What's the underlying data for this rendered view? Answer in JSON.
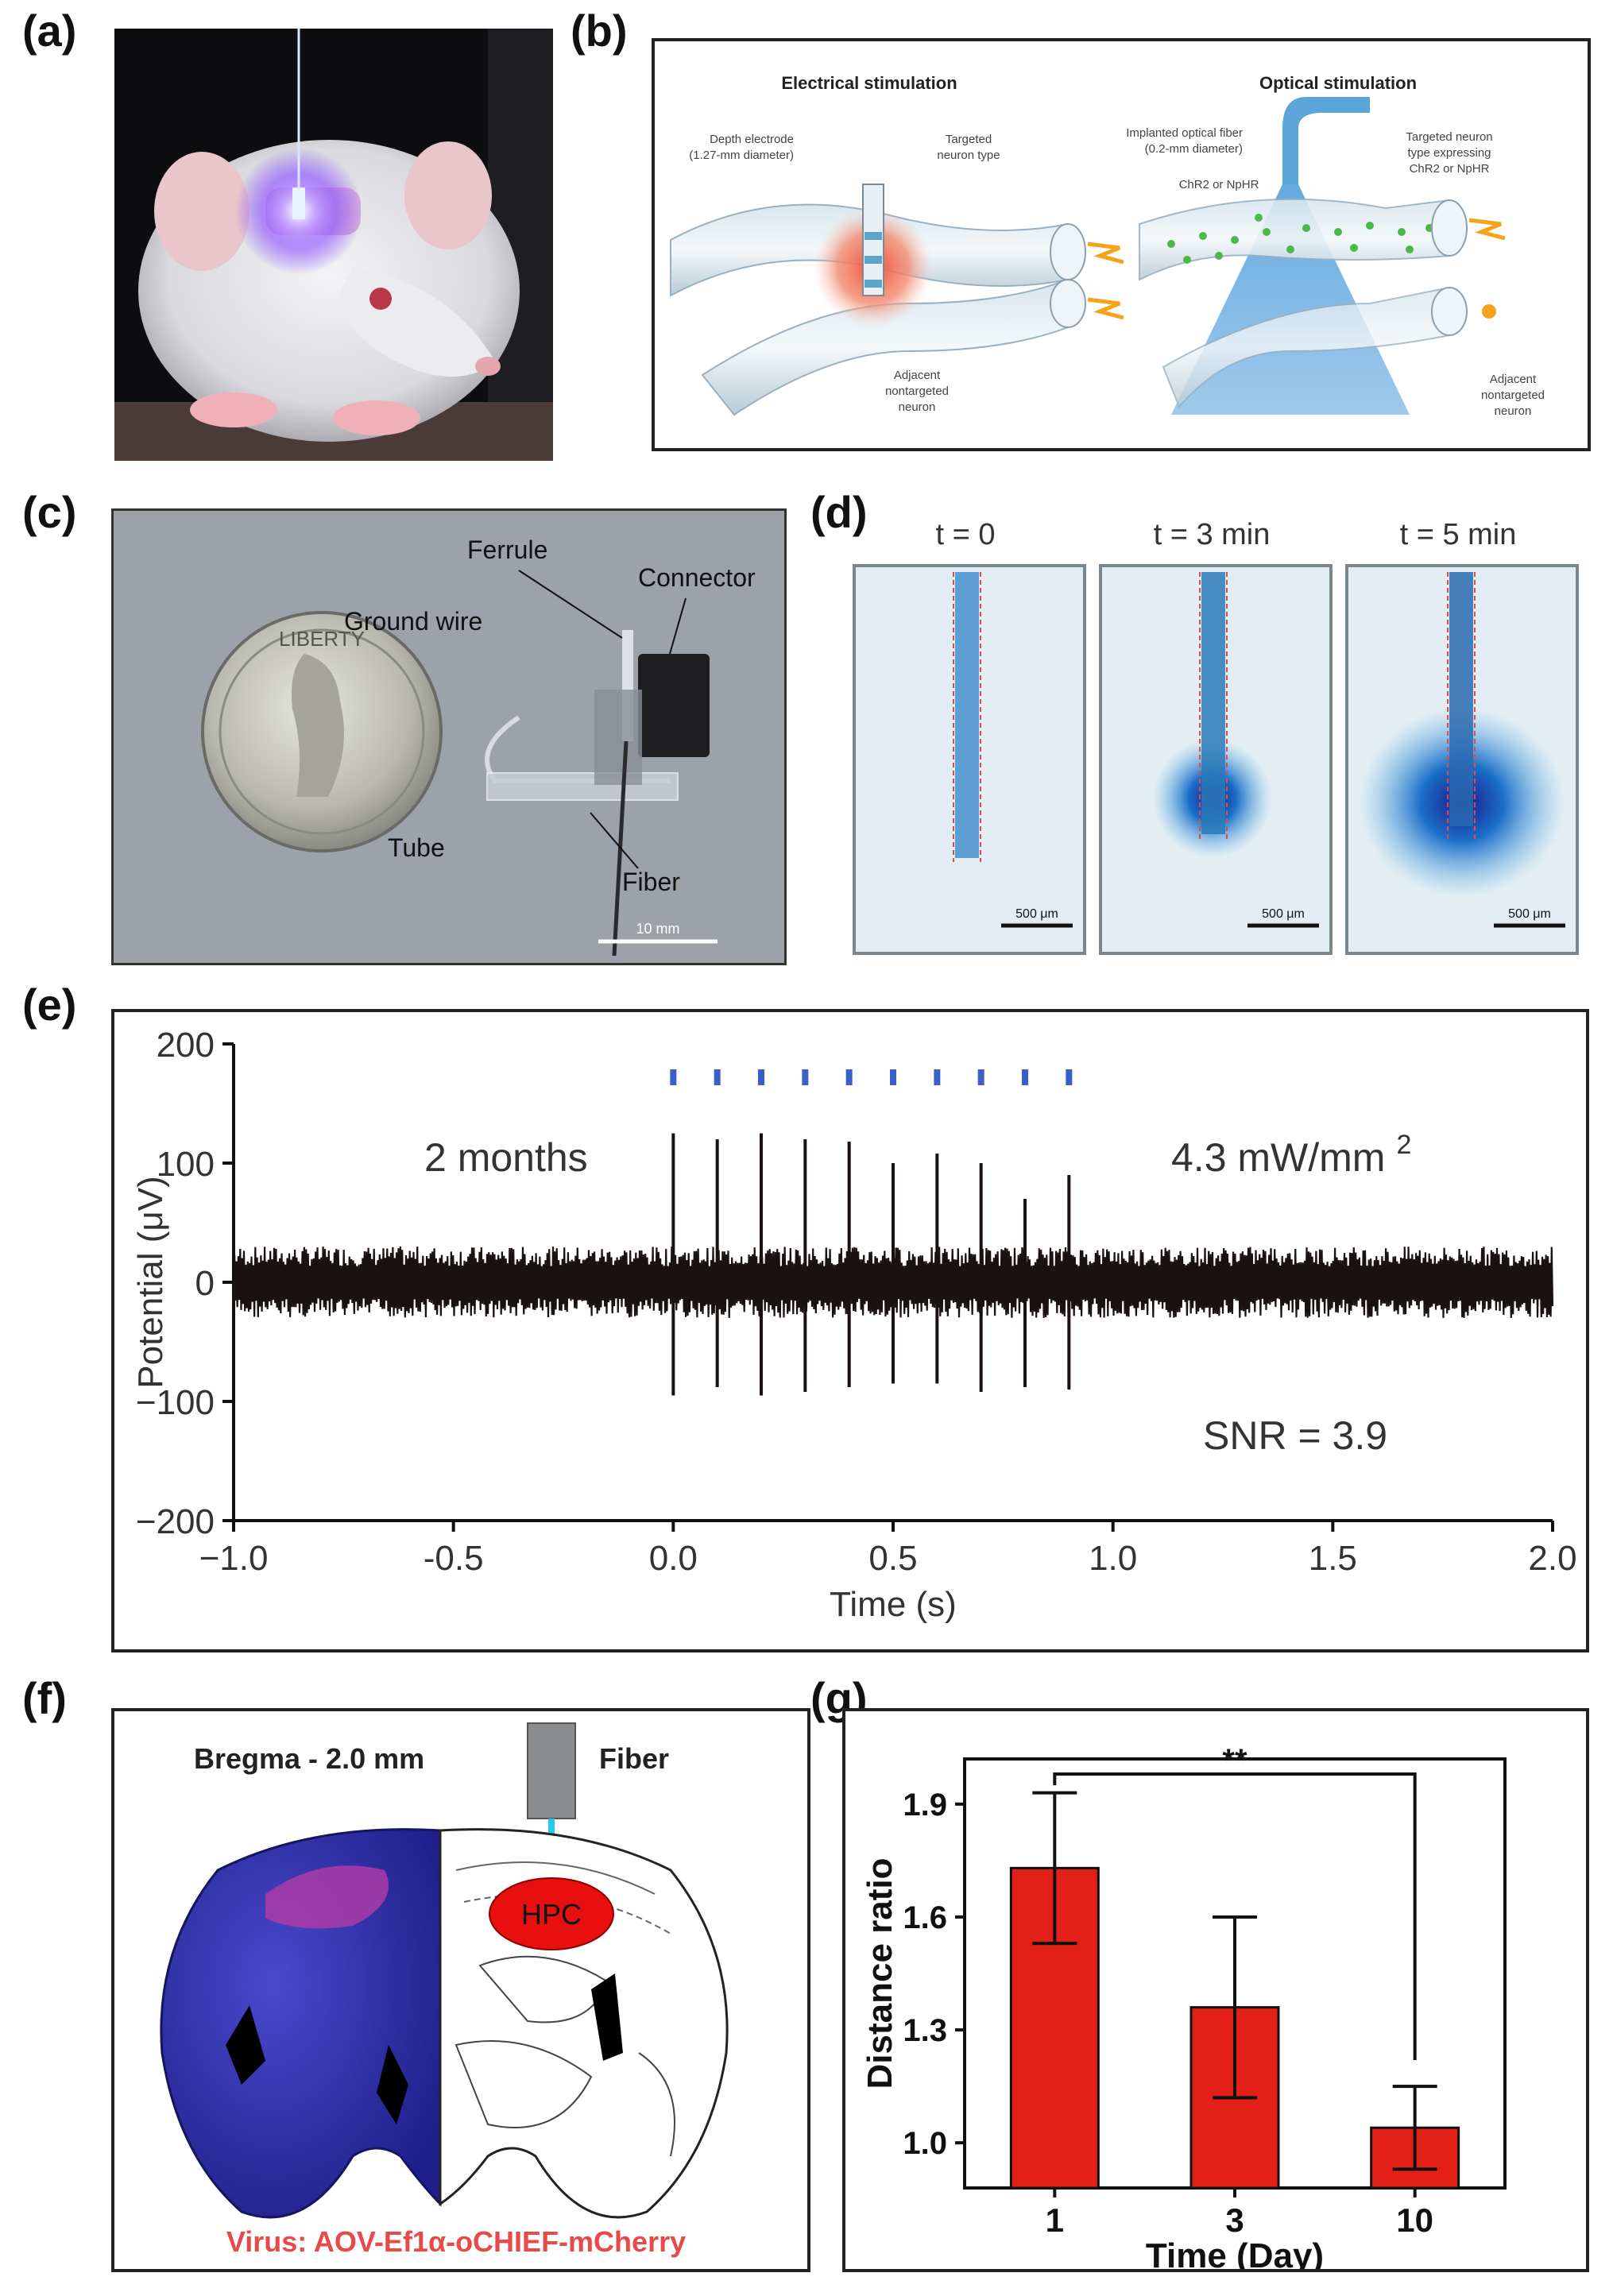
{
  "panels": {
    "a": {
      "label": "(a)"
    },
    "b": {
      "label": "(b)",
      "electrical_title": "Electrical stimulation",
      "optical_title": "Optical stimulation",
      "electrode_label_1": "Depth electrode",
      "electrode_label_2": "(1.27-mm diameter)",
      "targeted_label_1": "Targeted",
      "targeted_label_2": "neuron type",
      "adjacent_label_1": "Adjacent",
      "adjacent_label_2": "nontargeted",
      "adjacent_label_3": "neuron",
      "fiber_label_1": "Implanted optical fiber",
      "fiber_label_2": "(0.2-mm diameter)",
      "opsin_label": "ChR2 or NpHR",
      "expressing_label_1": "Targeted neuron",
      "expressing_label_2": "type expressing",
      "expressing_label_3": "ChR2 or NpHR",
      "adjacent2_label_1": "Adjacent",
      "adjacent2_label_2": "nontargeted",
      "adjacent2_label_3": "neuron"
    },
    "c": {
      "label": "(c)",
      "ferrule": "Ferrule",
      "connector": "Connector",
      "ground_wire": "Ground wire",
      "tube": "Tube",
      "fiber": "Fiber",
      "scale": "10 mm",
      "coin_text": "LIBERTY"
    },
    "d": {
      "label": "(d)",
      "times": [
        "t = 0",
        "t = 3 min",
        "t = 5 min"
      ],
      "scale": "500 μm"
    },
    "e": {
      "label": "(e)",
      "duration": "2 months",
      "intensity": "4.3 mW/mm",
      "intensity_sup": "2",
      "snr": "SNR = 3.9"
    },
    "f": {
      "label": "(f)",
      "bregma": "Bregma - 2.0 mm",
      "fiber": "Fiber",
      "hpc": "HPC",
      "virus": "Virus: AOV-Ef1α-oCHIEF-mCherry"
    },
    "g": {
      "label": "(g)"
    }
  },
  "chart_data": [
    {
      "panel": "e",
      "type": "line",
      "xlabel": "Time (s)",
      "ylabel": "Potential (μV)",
      "xlim": [
        -1.0,
        2.0
      ],
      "ylim": [
        -200,
        200
      ],
      "xticks": [
        -1.0,
        -0.5,
        0.0,
        0.5,
        1.0,
        1.5,
        2.0
      ],
      "xtick_labels": [
        "−1.0",
        "-0.5",
        "0.0",
        "0.5",
        "1.0",
        "1.5",
        "2.0"
      ],
      "yticks": [
        200,
        100,
        0,
        -100,
        -200
      ],
      "ytick_labels": [
        "200",
        "100",
        "0",
        "−100",
        "−200"
      ],
      "noise_amplitude": 30,
      "stim_times": [
        0.0,
        0.1,
        0.2,
        0.3,
        0.4,
        0.5,
        0.6,
        0.7,
        0.8,
        0.9
      ],
      "spike_peaks": [
        125,
        120,
        125,
        120,
        118,
        100,
        108,
        100,
        70,
        90
      ],
      "spike_troughs": [
        -95,
        -88,
        -95,
        -92,
        -88,
        -85,
        -85,
        -92,
        -88,
        -90
      ],
      "stim_marker_color": "#3a5fc8",
      "trace_color": "#1a1210"
    },
    {
      "panel": "g",
      "type": "bar",
      "categories": [
        "1",
        "3",
        "10"
      ],
      "values": [
        1.73,
        1.36,
        1.04
      ],
      "errors": [
        0.2,
        0.24,
        0.11
      ],
      "xlabel": "Time (Day)",
      "ylabel": "Distance ratio",
      "ylim": [
        0.88,
        2.02
      ],
      "yticks": [
        1.0,
        1.3,
        1.6,
        1.9
      ],
      "ytick_labels": [
        "1.0",
        "1.3",
        "1.6",
        "1.9"
      ],
      "significance": "**",
      "significance_pair": [
        "1",
        "10"
      ],
      "bar_color": "#e32018"
    }
  ]
}
